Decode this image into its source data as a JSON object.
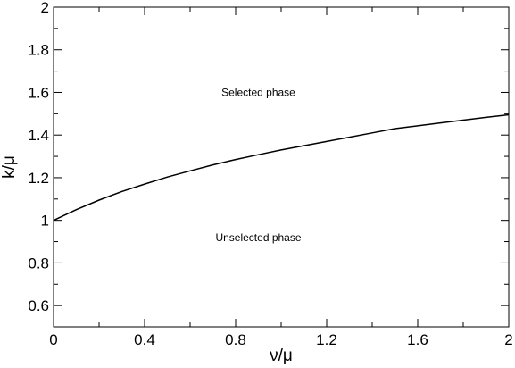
{
  "chart_data": {
    "type": "line",
    "xlabel": "ν/μ",
    "ylabel": "k/μ",
    "xlim": [
      0,
      2
    ],
    "ylim": [
      0.5,
      2
    ],
    "grid": false,
    "legend": "none",
    "line_color": "#000000",
    "x_ticks": [
      0,
      0.4,
      0.8,
      1.2,
      1.6,
      2
    ],
    "x_tick_labels": [
      "0",
      "0.4",
      "0.8",
      "1.2",
      "1.6",
      "2"
    ],
    "x_minor_ticks": [
      0.2,
      0.6,
      1.0,
      1.4,
      1.8
    ],
    "y_ticks": [
      0.6,
      0.8,
      1,
      1.2,
      1.4,
      1.6,
      1.8,
      2
    ],
    "y_tick_labels": [
      "0.6",
      "0.8",
      "1",
      "1.2",
      "1.4",
      "1.6",
      "1.8",
      "2"
    ],
    "y_minor_ticks": [
      0.7,
      0.9,
      1.1,
      1.3,
      1.5,
      1.7,
      1.9
    ],
    "series": [
      {
        "x": [
          0,
          0.1,
          0.2,
          0.3,
          0.4,
          0.5,
          0.6,
          0.7,
          0.8,
          0.9,
          1.0,
          1.1,
          1.2,
          1.3,
          1.4,
          1.5,
          1.6,
          1.7,
          1.8,
          1.9,
          2.0
        ],
        "y": [
          1.0,
          1.05,
          1.095,
          1.135,
          1.17,
          1.203,
          1.232,
          1.26,
          1.285,
          1.308,
          1.33,
          1.35,
          1.37,
          1.39,
          1.41,
          1.43,
          1.443,
          1.457,
          1.47,
          1.483,
          1.495
        ]
      }
    ],
    "annotations": [
      {
        "text": "Selected phase",
        "x": 0.9,
        "y": 1.6
      },
      {
        "text": "Unselected phase",
        "x": 0.9,
        "y": 0.92
      }
    ]
  }
}
